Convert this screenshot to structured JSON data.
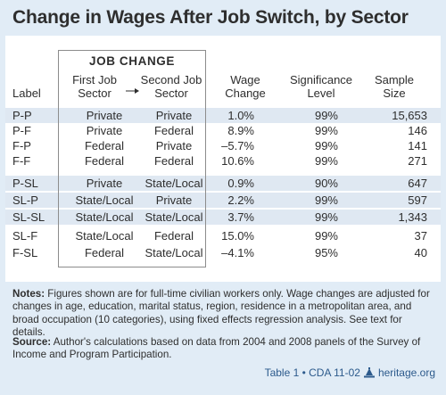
{
  "title": "Change in Wages After Job Switch, by Sector",
  "job_change_header": "JOB CHANGE",
  "columns": {
    "label": "Label",
    "first_1": "First Job",
    "first_2": "Sector",
    "second_1": "Second Job",
    "second_2": "Sector",
    "wage_1": "Wage",
    "wage_2": "Change",
    "sig_1": "Significance",
    "sig_2": "Level",
    "n_1": "Sample",
    "n_2": "Size"
  },
  "rows": [
    {
      "label": "P-P",
      "first": "Private",
      "second": "Private",
      "wage": "1.0%",
      "sig": "99%",
      "n": "15,653"
    },
    {
      "label": "P-F",
      "first": "Private",
      "second": "Federal",
      "wage": "8.9%",
      "sig": "99%",
      "n": "146"
    },
    {
      "label": "F-P",
      "first": "Federal",
      "second": "Private",
      "wage": "–5.7%",
      "sig": "99%",
      "n": "141"
    },
    {
      "label": "F-F",
      "first": "Federal",
      "second": "Federal",
      "wage": "10.6%",
      "sig": "99%",
      "n": "271"
    },
    {
      "label": "P-SL",
      "first": "Private",
      "second": "State/Local",
      "wage": "0.9%",
      "sig": "90%",
      "n": "647"
    },
    {
      "label": "SL-P",
      "first": "State/Local",
      "second": "Private",
      "wage": "2.2%",
      "sig": "99%",
      "n": "597"
    },
    {
      "label": "SL-SL",
      "first": "State/Local",
      "second": "State/Local",
      "wage": "3.7%",
      "sig": "99%",
      "n": "1,343"
    },
    {
      "label": "SL-F",
      "first": "State/Local",
      "second": "Federal",
      "wage": "15.0%",
      "sig": "99%",
      "n": "37"
    },
    {
      "label": "F-SL",
      "first": "Federal",
      "second": "State/Local",
      "wage": "–4.1%",
      "sig": "95%",
      "n": "40"
    }
  ],
  "notes_label": "Notes:",
  "notes_text": " Figures shown are for full-time civilian workers only. Wage changes are adjusted for changes in age, education, marital status, region, residence in a metropolitan area, and broad occupation (10 categories), using fixed effects regression analysis. See text for details.",
  "source_label": "Source:",
  "source_text": " Author's calculations based on data from 2004 and 2008 panels of the Survey of Income and Program Participation.",
  "footer": {
    "table_ref": "Table 1 • CDA 11-02",
    "site": "heritage.org",
    "logo_icon": "heritage-bell-icon"
  }
}
